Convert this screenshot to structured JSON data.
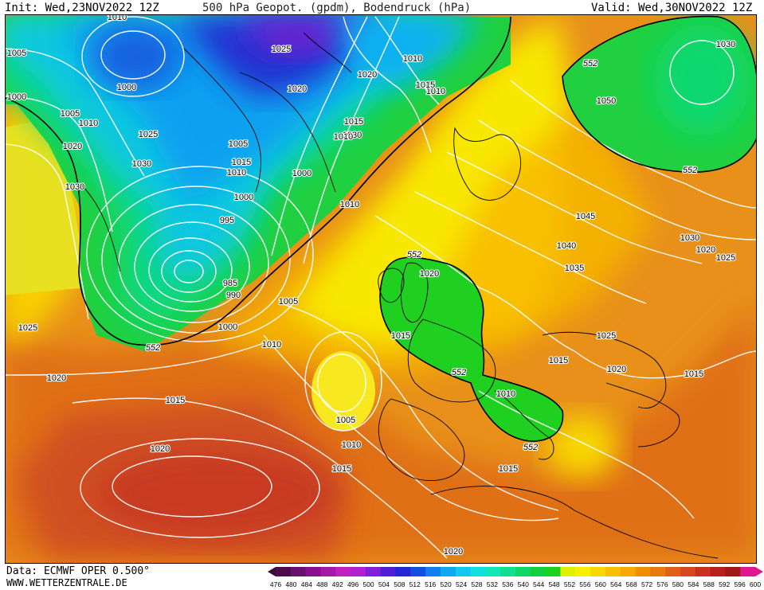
{
  "header": {
    "init": "Init: Wed,23NOV2022 12Z",
    "title": "500 hPa Geopot. (gpdm), Bodendruck (hPa)",
    "valid": "Valid: Wed,30NOV2022 12Z"
  },
  "footer": {
    "source": "Data: ECMWF OPER 0.500°",
    "website": "WWW.WETTERZENTRALE.DE"
  },
  "legend": {
    "ticks": [
      "476",
      "480",
      "484",
      "488",
      "492",
      "496",
      "500",
      "504",
      "508",
      "512",
      "516",
      "520",
      "524",
      "528",
      "532",
      "536",
      "540",
      "544",
      "548",
      "552",
      "556",
      "560",
      "564",
      "568",
      "572",
      "576",
      "580",
      "584",
      "588",
      "592",
      "596",
      "600"
    ],
    "colors": [
      "#4a0d4a",
      "#6a1070",
      "#8a1090",
      "#a818a8",
      "#c020c0",
      "#b020d0",
      "#8020d8",
      "#5020d8",
      "#2028d8",
      "#1050e0",
      "#1080f0",
      "#10a8f0",
      "#10c8f0",
      "#10e0e0",
      "#10e8b8",
      "#10e090",
      "#10d868",
      "#10d040",
      "#20d020",
      "#e0f000",
      "#f8f000",
      "#f8d800",
      "#f8c000",
      "#f8a800",
      "#f09000",
      "#e87810",
      "#e06018",
      "#d84820",
      "#c83020",
      "#b82020",
      "#a01818",
      "#e01890"
    ]
  },
  "map": {
    "pressure_labels": [
      "1010",
      "1025",
      "1020",
      "1010",
      "1005",
      "1000",
      "1000",
      "1005",
      "1010",
      "1020",
      "1030",
      "1015",
      "1025",
      "1030",
      "1010",
      "1005",
      "1015",
      "1020",
      "1010",
      "1015",
      "1010",
      "1000",
      "1000",
      "1010",
      "995",
      "985",
      "990",
      "1005",
      "1000",
      "1010",
      "1025",
      "1020",
      "1015",
      "1005",
      "1010",
      "1015",
      "1020",
      "1030",
      "1050",
      "1045",
      "1040",
      "1035",
      "1030",
      "1020",
      "1025",
      "1025",
      "1020",
      "1015",
      "1015",
      "1010",
      "1020",
      "1015",
      "1020",
      "1030",
      "1015"
    ],
    "geopotential_labels": [
      "552",
      "552",
      "552",
      "552",
      "552",
      "552"
    ]
  }
}
